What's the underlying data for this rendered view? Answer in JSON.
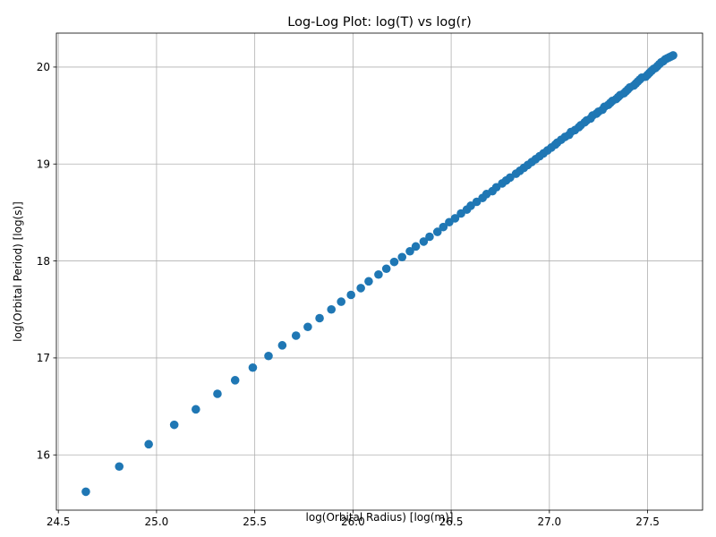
{
  "chart_data": {
    "type": "scatter",
    "title": "Log-Log Plot: log(T) vs log(r)",
    "xlabel": "log(Orbital Radius) [log(m)]",
    "ylabel": "log(Orbital Period) [log(s)]",
    "xlim": [
      24.49,
      27.78
    ],
    "ylim": [
      15.43,
      20.35
    ],
    "xticks": [
      24.5,
      25.0,
      25.5,
      26.0,
      26.5,
      27.0,
      27.5
    ],
    "xtick_labels": [
      "24.5",
      "25.0",
      "25.5",
      "26.0",
      "26.5",
      "27.0",
      "27.5"
    ],
    "yticks": [
      16,
      17,
      18,
      19,
      20
    ],
    "ytick_labels": [
      "16",
      "17",
      "18",
      "19",
      "20"
    ],
    "grid": true,
    "marker_color": "#1f77b4",
    "series": [
      {
        "x": [
          24.64,
          24.81,
          24.96,
          25.09,
          25.2,
          25.31,
          25.4,
          25.49,
          25.57,
          25.64,
          25.71,
          25.77,
          25.83,
          25.89,
          25.94,
          25.99,
          26.04,
          26.08,
          26.13,
          26.17,
          26.21,
          26.25,
          26.29,
          26.32,
          26.36,
          26.39,
          26.43,
          26.46,
          26.49,
          26.52,
          26.55,
          26.58,
          26.6,
          26.63,
          26.66,
          26.68,
          26.71,
          26.73,
          26.76,
          26.78,
          26.8,
          26.83,
          26.85,
          26.87,
          26.89,
          26.91,
          26.93,
          26.95,
          26.97,
          26.99,
          27.01,
          27.03,
          27.04,
          27.06,
          27.08,
          27.1,
          27.11,
          27.13,
          27.15,
          27.16,
          27.18,
          27.19,
          27.21,
          27.22,
          27.24,
          27.25,
          27.27,
          27.28,
          27.3,
          27.31,
          27.32,
          27.34,
          27.35,
          27.36,
          27.38,
          27.39,
          27.4,
          27.41,
          27.43,
          27.44,
          27.45,
          27.46,
          27.47,
          27.49,
          27.5,
          27.51,
          27.52,
          27.53,
          27.54,
          27.55,
          27.56,
          27.57,
          27.58,
          27.59,
          27.6,
          27.61,
          27.62,
          27.63
        ],
        "y": [
          15.62,
          15.88,
          16.11,
          16.31,
          16.47,
          16.63,
          16.77,
          16.9,
          17.02,
          17.13,
          17.23,
          17.32,
          17.41,
          17.5,
          17.58,
          17.65,
          17.72,
          17.79,
          17.86,
          17.92,
          17.99,
          18.04,
          18.1,
          18.15,
          18.2,
          18.25,
          18.3,
          18.35,
          18.4,
          18.44,
          18.49,
          18.53,
          18.57,
          18.61,
          18.65,
          18.69,
          18.72,
          18.76,
          18.8,
          18.83,
          18.86,
          18.9,
          18.93,
          18.96,
          18.99,
          19.02,
          19.05,
          19.08,
          19.11,
          19.14,
          19.17,
          19.2,
          19.22,
          19.25,
          19.28,
          19.3,
          19.33,
          19.35,
          19.38,
          19.4,
          19.43,
          19.45,
          19.47,
          19.5,
          19.52,
          19.54,
          19.56,
          19.59,
          19.61,
          19.63,
          19.65,
          19.67,
          19.69,
          19.71,
          19.73,
          19.75,
          19.77,
          19.79,
          19.81,
          19.83,
          19.85,
          19.87,
          19.89,
          19.9,
          19.92,
          19.94,
          19.96,
          19.98,
          19.99,
          20.01,
          20.03,
          20.05,
          20.06,
          20.08,
          20.09,
          20.1,
          20.11,
          20.12
        ]
      }
    ]
  }
}
